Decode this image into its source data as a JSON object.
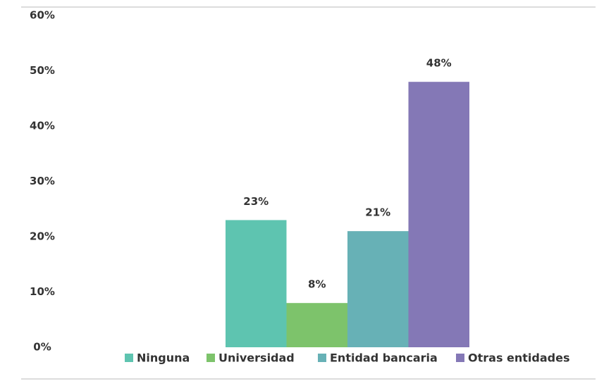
{
  "chart_data": {
    "type": "bar",
    "series": [
      {
        "name": "Ninguna",
        "color": "#5ec4b0",
        "values": [
          23
        ],
        "value_labels": [
          "23%"
        ]
      },
      {
        "name": "Universidad",
        "color": "#7dc36b",
        "values": [
          8
        ],
        "value_labels": [
          "8%"
        ]
      },
      {
        "name": "Entidad bancaria",
        "color": "#67b1b6",
        "values": [
          21
        ],
        "value_labels": [
          "21%"
        ]
      },
      {
        "name": "Otras entidades",
        "color": "#8478b6",
        "values": [
          48
        ],
        "value_labels": [
          "48%"
        ]
      }
    ],
    "ylim": [
      0,
      60
    ],
    "yticks": [
      {
        "value": 0,
        "label": "0%"
      },
      {
        "value": 10,
        "label": "10%"
      },
      {
        "value": 20,
        "label": "20%"
      },
      {
        "value": 30,
        "label": "30%"
      },
      {
        "value": 40,
        "label": "40%"
      },
      {
        "value": 50,
        "label": "50%"
      },
      {
        "value": 60,
        "label": "60%"
      }
    ],
    "grid": false,
    "legend": "bottom"
  }
}
